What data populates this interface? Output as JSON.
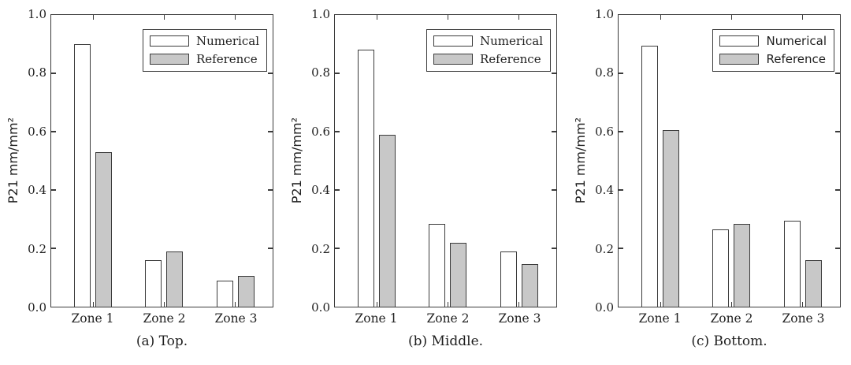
{
  "figure": {
    "background": "#ffffff",
    "axis_color": "#3b3b3b",
    "text_color": "#1f1f1f",
    "bar_fill_numerical": "#ffffff",
    "bar_fill_reference": "#c8c8c8",
    "legend_labels": [
      "Numerical",
      "Reference"
    ]
  },
  "chart_data": [
    {
      "type": "bar",
      "title": "(a) Top.",
      "ylabel": "P21 mm/mm²",
      "xlabel": "",
      "categories": [
        "Zone 1",
        "Zone 2",
        "Zone 3"
      ],
      "series": [
        {
          "name": "Numerical",
          "fill": "#ffffff",
          "values": [
            0.9,
            0.16,
            0.09
          ]
        },
        {
          "name": "Reference",
          "fill": "#c8c8c8",
          "values": [
            0.53,
            0.19,
            0.105
          ]
        }
      ],
      "ylim": [
        0.0,
        1.0
      ],
      "yticks": [
        0.0,
        0.2,
        0.4,
        0.6,
        0.8,
        1.0
      ],
      "grid": false,
      "legend_position": "top-right"
    },
    {
      "type": "bar",
      "title": "(b) Middle.",
      "ylabel": "P21 mm/mm²",
      "xlabel": "",
      "categories": [
        "Zone 1",
        "Zone 2",
        "Zone 3"
      ],
      "series": [
        {
          "name": "Numerical",
          "fill": "#ffffff",
          "values": [
            0.88,
            0.285,
            0.19
          ]
        },
        {
          "name": "Reference",
          "fill": "#c8c8c8",
          "values": [
            0.59,
            0.22,
            0.145
          ]
        }
      ],
      "ylim": [
        0.0,
        1.0
      ],
      "yticks": [
        0.0,
        0.2,
        0.4,
        0.6,
        0.8,
        1.0
      ],
      "grid": false,
      "legend_position": "top-right"
    },
    {
      "type": "bar",
      "title": "(c) Bottom.",
      "ylabel": "P21 mm/mm²",
      "xlabel": "",
      "categories": [
        "Zone 1",
        "Zone 2",
        "Zone 3"
      ],
      "series": [
        {
          "name": "Numerical",
          "fill": "#ffffff",
          "values": [
            0.895,
            0.265,
            0.295
          ]
        },
        {
          "name": "Reference",
          "fill": "#c8c8c8",
          "values": [
            0.605,
            0.285,
            0.16
          ]
        }
      ],
      "ylim": [
        0.0,
        1.0
      ],
      "yticks": [
        0.0,
        0.2,
        0.4,
        0.6,
        0.8,
        1.0
      ],
      "grid": false,
      "legend_position": "top-right"
    }
  ]
}
